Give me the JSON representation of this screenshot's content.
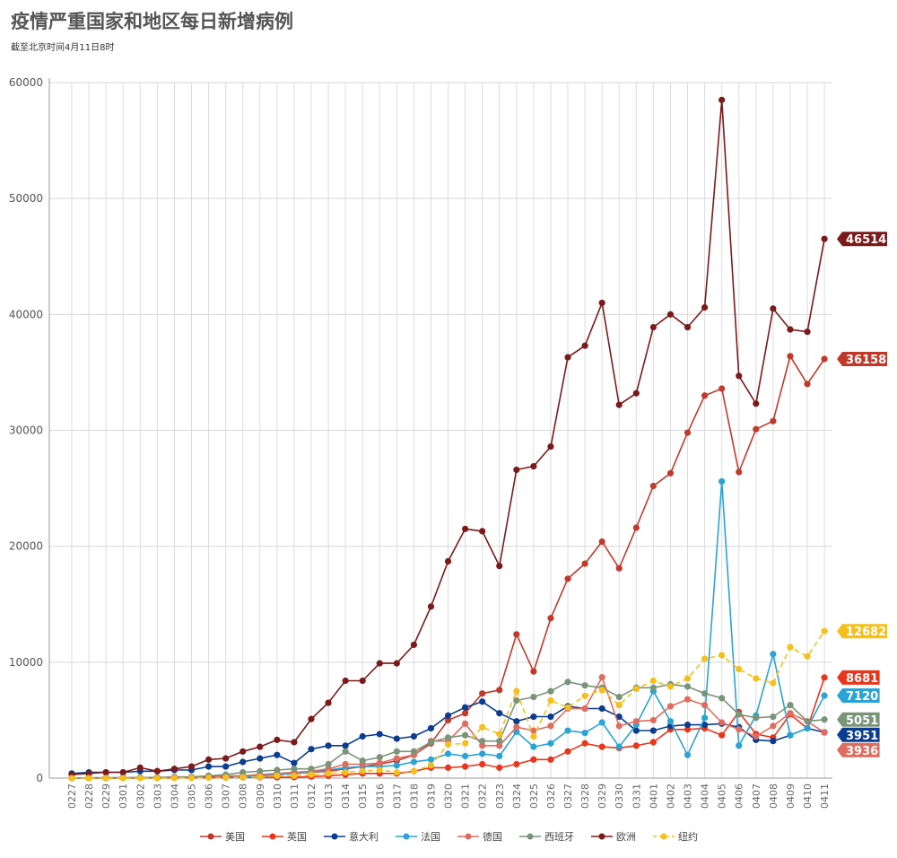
{
  "title": "疫情严重国家和地区每日新增病例",
  "subtitle": "截至北京时间4月11日8时",
  "chart_data": {
    "type": "line",
    "ylim": [
      0,
      60000
    ],
    "yticks": [
      0,
      10000,
      20000,
      30000,
      40000,
      50000,
      60000
    ],
    "legend_position": "bottom",
    "grid": true,
    "categories": [
      "0227",
      "0228",
      "0229",
      "0301",
      "0302",
      "0303",
      "0304",
      "0305",
      "0306",
      "0307",
      "0308",
      "0309",
      "0310",
      "0311",
      "0312",
      "0313",
      "0314",
      "0315",
      "0316",
      "0317",
      "0318",
      "0319",
      "0320",
      "0321",
      "0322",
      "0323",
      "0324",
      "0325",
      "0326",
      "0327",
      "0328",
      "0329",
      "0330",
      "0331",
      "0401",
      "0402",
      "0403",
      "0404",
      "0405",
      "0406",
      "0407",
      "0408",
      "0409",
      "0410",
      "0411"
    ],
    "series": [
      {
        "name": "美国",
        "color": "#c0392b",
        "dashed": false,
        "end_label": "36158",
        "values": [
          0,
          0,
          0,
          0,
          20,
          20,
          40,
          70,
          100,
          100,
          200,
          200,
          300,
          400,
          500,
          600,
          800,
          1000,
          1200,
          1500,
          2000,
          3000,
          5000,
          5600,
          7300,
          7600,
          12400,
          9200,
          13800,
          17200,
          18500,
          20400,
          18100,
          21600,
          25200,
          26300,
          29800,
          33000,
          33600,
          26400,
          30100,
          30800,
          36400,
          34000,
          36158
        ]
      },
      {
        "name": "英国",
        "color": "#e8351c",
        "dashed": false,
        "end_label": "8681",
        "values": [
          0,
          0,
          0,
          0,
          10,
          10,
          20,
          20,
          50,
          50,
          60,
          70,
          70,
          80,
          130,
          200,
          300,
          400,
          400,
          400,
          600,
          900,
          900,
          1000,
          1200,
          900,
          1200,
          1600,
          1600,
          2300,
          3000,
          2700,
          2600,
          2800,
          3100,
          4200,
          4200,
          4300,
          3700,
          5700,
          3800,
          3500,
          5500,
          4300,
          8681
        ]
      },
      {
        "name": "意大利",
        "color": "#0a3d8f",
        "dashed": false,
        "end_label": "3951",
        "values": [
          400,
          500,
          500,
          500,
          600,
          600,
          700,
          700,
          1000,
          1000,
          1400,
          1700,
          2000,
          1300,
          2500,
          2800,
          2800,
          3600,
          3800,
          3400,
          3600,
          4300,
          5400,
          6100,
          6600,
          5600,
          4900,
          5300,
          5300,
          6200,
          6000,
          6000,
          5300,
          4100,
          4100,
          4500,
          4600,
          4600,
          4700,
          4400,
          3300,
          3200,
          3700,
          4300,
          3951
        ]
      },
      {
        "name": "法国",
        "color": "#2ba3d4",
        "dashed": false,
        "end_label": "7120",
        "values": [
          10,
          20,
          30,
          50,
          50,
          70,
          70,
          70,
          200,
          200,
          100,
          200,
          300,
          400,
          500,
          700,
          900,
          1000,
          1000,
          1100,
          1400,
          1600,
          2100,
          1900,
          2100,
          1900,
          4000,
          2700,
          3000,
          4100,
          3900,
          4800,
          2700,
          4600,
          7500,
          4900,
          2000,
          5200,
          25600,
          2800,
          5400,
          10700,
          3700,
          4300,
          7120
        ]
      },
      {
        "name": "德国",
        "color": "#e06c5f",
        "dashed": false,
        "end_label": "3936",
        "values": [
          10,
          20,
          20,
          40,
          50,
          50,
          100,
          100,
          200,
          200,
          200,
          300,
          400,
          500,
          600,
          800,
          1200,
          1200,
          1300,
          1700,
          2000,
          3200,
          3200,
          4700,
          2800,
          2800,
          4400,
          4100,
          4500,
          6000,
          6000,
          8700,
          4500,
          4900,
          5000,
          6200,
          6800,
          6300,
          4800,
          4200,
          3600,
          4500,
          5600,
          4900,
          3936
        ]
      },
      {
        "name": "西班牙",
        "color": "#7a9479",
        "dashed": false,
        "end_label": "5051",
        "values": [
          10,
          10,
          20,
          10,
          50,
          30,
          70,
          100,
          200,
          300,
          500,
          600,
          700,
          800,
          800,
          1200,
          2300,
          1500,
          1800,
          2300,
          2300,
          3100,
          3500,
          3700,
          3200,
          3200,
          6700,
          7000,
          7500,
          8300,
          8000,
          7800,
          7000,
          7800,
          7800,
          8100,
          7900,
          7300,
          6900,
          5500,
          5200,
          5300,
          6300,
          4900,
          5051
        ]
      },
      {
        "name": "欧洲",
        "color": "#7b1a1a",
        "dashed": false,
        "end_label": "46514",
        "values": [
          300,
          400,
          500,
          500,
          900,
          600,
          800,
          1000,
          1600,
          1700,
          2300,
          2700,
          3300,
          3100,
          5100,
          6500,
          8400,
          8400,
          9900,
          9900,
          11500,
          14800,
          18700,
          21500,
          21300,
          18300,
          26600,
          26900,
          28600,
          36300,
          37300,
          41000,
          32200,
          33200,
          38900,
          40000,
          38900,
          40600,
          58500,
          34700,
          32300,
          40500,
          38700,
          38500,
          46514
        ]
      },
      {
        "name": "纽约",
        "color": "#f5bf1c",
        "dashed": true,
        "end_label": "12682",
        "values": [
          0,
          0,
          0,
          0,
          0,
          0,
          10,
          20,
          40,
          50,
          60,
          100,
          200,
          200,
          300,
          400,
          500,
          600,
          700,
          500,
          600,
          1100,
          2900,
          3000,
          4400,
          3800,
          7500,
          3600,
          6700,
          6100,
          7100,
          7600,
          6300,
          7700,
          8400,
          7900,
          8600,
          10300,
          10600,
          9400,
          8600,
          8200,
          11300,
          10500,
          12682
        ]
      }
    ]
  }
}
